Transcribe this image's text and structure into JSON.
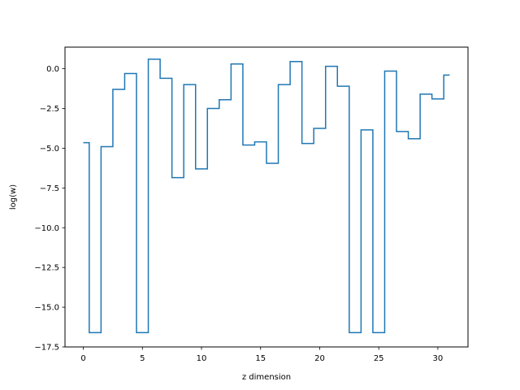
{
  "chart_data": {
    "type": "line",
    "drawstyle": "steps-mid",
    "title": "",
    "xlabel": "z dimension",
    "ylabel": "log(w)",
    "xlim": [
      -1.55,
      32.55
    ],
    "ylim": [
      -17.5,
      1.36
    ],
    "xticks": [
      0,
      5,
      10,
      15,
      20,
      25,
      30
    ],
    "xtick_labels": [
      "0",
      "5",
      "10",
      "15",
      "20",
      "25",
      "30"
    ],
    "yticks": [
      0.0,
      -2.5,
      -5.0,
      -7.5,
      -10.0,
      -12.5,
      -15.0,
      -17.5
    ],
    "ytick_labels": [
      "0.0",
      "−2.5",
      "−5.0",
      "−7.5",
      "−10.0",
      "−12.5",
      "−15.0",
      "−17.5"
    ],
    "grid": false,
    "series": [
      {
        "color": "#1f77b4",
        "x": [
          0,
          1,
          2,
          3,
          4,
          5,
          6,
          7,
          8,
          9,
          10,
          11,
          12,
          13,
          14,
          15,
          16,
          17,
          18,
          19,
          20,
          21,
          22,
          23,
          24,
          25,
          26,
          27,
          28,
          29,
          30,
          31
        ],
        "values": [
          -4.65,
          -16.6,
          -4.9,
          -1.3,
          -0.3,
          -16.6,
          0.6,
          -0.6,
          -6.85,
          -1.0,
          -6.3,
          -2.5,
          -1.95,
          0.3,
          -4.8,
          -4.6,
          -5.95,
          -1.0,
          0.45,
          -4.7,
          -3.75,
          0.15,
          -1.1,
          -16.6,
          -3.85,
          -16.6,
          -0.15,
          -3.95,
          -4.4,
          -1.6,
          -1.9,
          -0.4
        ]
      }
    ]
  }
}
